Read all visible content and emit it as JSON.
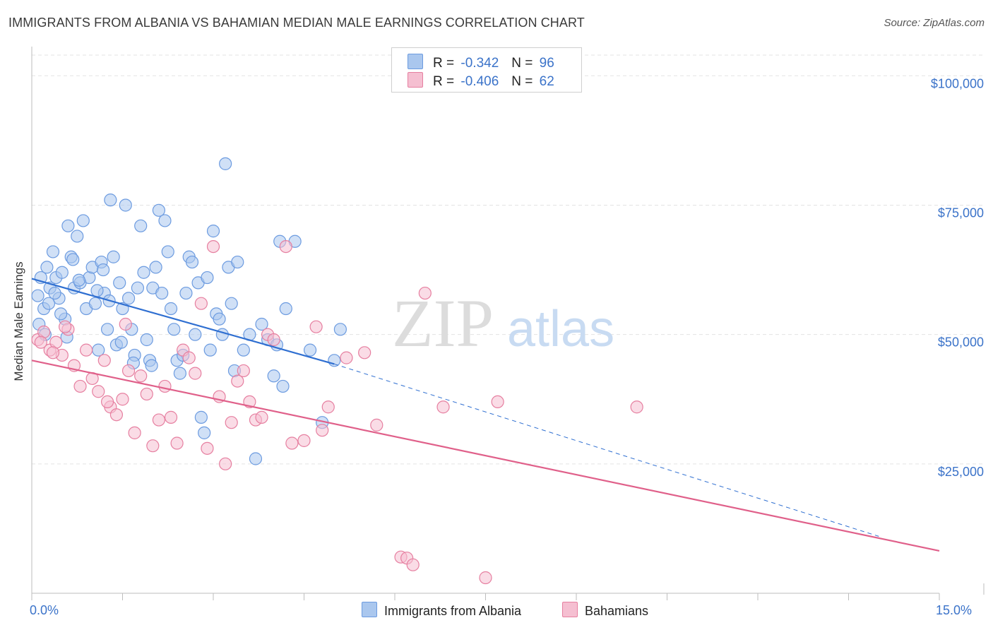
{
  "title": "IMMIGRANTS FROM ALBANIA VS BAHAMIAN MEDIAN MALE EARNINGS CORRELATION CHART",
  "source": "Source: ZipAtlas.com",
  "watermark": {
    "zip": "ZIP",
    "atlas": "atlas"
  },
  "legend": {
    "r_label": "R =",
    "n_label": "N =",
    "rows": [
      {
        "r": "-0.342",
        "n": "96",
        "color": "#aac7ee"
      },
      {
        "r": "-0.406",
        "n": "62",
        "color": "#f5bfd1"
      }
    ]
  },
  "bottom_legend": {
    "albania": "Immigrants from Albania",
    "bahamians": "Bahamians"
  },
  "chart_data": {
    "type": "scatter",
    "title": "IMMIGRANTS FROM ALBANIA VS BAHAMIAN MEDIAN MALE EARNINGS CORRELATION CHART",
    "xlabel": "",
    "ylabel": "Median Male Earnings",
    "xlim": [
      0,
      15
    ],
    "ylim": [
      0,
      104000
    ],
    "x_tick_labels": {
      "left": "0.0%",
      "right": "15.0%"
    },
    "y_ticks": [
      {
        "value": 25000,
        "label": "$25,000"
      },
      {
        "value": 50000,
        "label": "$50,000"
      },
      {
        "value": 75000,
        "label": "$75,000"
      },
      {
        "value": 100000,
        "label": "$100,000"
      }
    ],
    "grid": true,
    "series": [
      {
        "name": "Immigrants from Albania",
        "color": "#6c9be0",
        "fill": "#aac7ee",
        "trend": {
          "x0": 0,
          "y0": 60800,
          "x1": 5.0,
          "y1": 44300,
          "dash_to_x": 14.0,
          "dash_to_y": 11000
        },
        "points": [
          [
            0.1,
            57500
          ],
          [
            0.15,
            61000
          ],
          [
            0.2,
            55000
          ],
          [
            0.25,
            63000
          ],
          [
            0.3,
            59000
          ],
          [
            0.35,
            66000
          ],
          [
            0.4,
            61000
          ],
          [
            0.45,
            57000
          ],
          [
            0.5,
            62000
          ],
          [
            0.55,
            53000
          ],
          [
            0.6,
            71000
          ],
          [
            0.65,
            65000
          ],
          [
            0.7,
            59000
          ],
          [
            0.75,
            69000
          ],
          [
            0.8,
            60000
          ],
          [
            0.85,
            72000
          ],
          [
            0.9,
            55000
          ],
          [
            0.95,
            61000
          ],
          [
            1.0,
            63000
          ],
          [
            1.05,
            56000
          ],
          [
            1.1,
            47000
          ],
          [
            1.15,
            64000
          ],
          [
            1.2,
            58000
          ],
          [
            1.25,
            51000
          ],
          [
            1.3,
            76000
          ],
          [
            1.35,
            65000
          ],
          [
            1.4,
            48000
          ],
          [
            1.45,
            60000
          ],
          [
            1.5,
            55000
          ],
          [
            1.55,
            75000
          ],
          [
            1.6,
            57000
          ],
          [
            1.65,
            51000
          ],
          [
            1.7,
            46000
          ],
          [
            1.75,
            59000
          ],
          [
            1.8,
            71000
          ],
          [
            1.85,
            62000
          ],
          [
            1.9,
            49000
          ],
          [
            1.95,
            45000
          ],
          [
            2.0,
            59000
          ],
          [
            2.05,
            63000
          ],
          [
            2.1,
            74000
          ],
          [
            2.15,
            58000
          ],
          [
            2.2,
            72000
          ],
          [
            2.25,
            66000
          ],
          [
            2.3,
            55000
          ],
          [
            2.35,
            51000
          ],
          [
            2.4,
            45000
          ],
          [
            2.45,
            42500
          ],
          [
            2.5,
            46000
          ],
          [
            2.55,
            58000
          ],
          [
            2.6,
            65000
          ],
          [
            2.65,
            64000
          ],
          [
            2.7,
            50000
          ],
          [
            2.75,
            60000
          ],
          [
            2.8,
            34000
          ],
          [
            2.85,
            31000
          ],
          [
            2.9,
            61000
          ],
          [
            2.95,
            47000
          ],
          [
            3.0,
            70000
          ],
          [
            3.05,
            54000
          ],
          [
            3.1,
            53000
          ],
          [
            3.15,
            50000
          ],
          [
            3.2,
            83000
          ],
          [
            3.25,
            63000
          ],
          [
            3.3,
            56000
          ],
          [
            3.35,
            43000
          ],
          [
            3.4,
            64000
          ],
          [
            3.5,
            47000
          ],
          [
            3.6,
            50000
          ],
          [
            3.7,
            26000
          ],
          [
            3.8,
            52000
          ],
          [
            3.9,
            49000
          ],
          [
            4.0,
            42000
          ],
          [
            4.05,
            48000
          ],
          [
            4.1,
            68000
          ],
          [
            4.15,
            40000
          ],
          [
            4.2,
            55000
          ],
          [
            4.35,
            68000
          ],
          [
            4.6,
            47000
          ],
          [
            4.8,
            33000
          ],
          [
            5.0,
            45000
          ],
          [
            5.1,
            51000
          ],
          [
            0.12,
            52000
          ],
          [
            0.22,
            50000
          ],
          [
            0.28,
            56000
          ],
          [
            0.38,
            58000
          ],
          [
            0.48,
            54000
          ],
          [
            0.58,
            49500
          ],
          [
            0.68,
            64500
          ],
          [
            0.78,
            60500
          ],
          [
            1.08,
            58500
          ],
          [
            1.18,
            62500
          ],
          [
            1.28,
            56500
          ],
          [
            1.48,
            48500
          ],
          [
            1.68,
            44500
          ],
          [
            1.98,
            44000
          ]
        ]
      },
      {
        "name": "Bahamians",
        "color": "#e67fa0",
        "fill": "#f5bfd1",
        "trend": {
          "x0": 0,
          "y0": 45000,
          "x1": 15.0,
          "y1": 8200
        },
        "points": [
          [
            0.1,
            49000
          ],
          [
            0.2,
            50500
          ],
          [
            0.3,
            47000
          ],
          [
            0.4,
            48500
          ],
          [
            0.5,
            46000
          ],
          [
            0.6,
            51000
          ],
          [
            0.7,
            44000
          ],
          [
            0.8,
            40000
          ],
          [
            0.9,
            47000
          ],
          [
            1.0,
            41500
          ],
          [
            1.1,
            39000
          ],
          [
            1.2,
            45000
          ],
          [
            1.3,
            36000
          ],
          [
            1.4,
            34500
          ],
          [
            1.5,
            37500
          ],
          [
            1.6,
            43000
          ],
          [
            1.7,
            31000
          ],
          [
            1.8,
            42000
          ],
          [
            1.9,
            38500
          ],
          [
            2.0,
            28500
          ],
          [
            2.1,
            33500
          ],
          [
            2.2,
            40000
          ],
          [
            2.3,
            34000
          ],
          [
            2.4,
            29000
          ],
          [
            2.5,
            47000
          ],
          [
            2.6,
            45500
          ],
          [
            2.7,
            42500
          ],
          [
            2.8,
            56000
          ],
          [
            2.9,
            28000
          ],
          [
            3.0,
            67000
          ],
          [
            3.1,
            38000
          ],
          [
            3.2,
            25000
          ],
          [
            3.3,
            33000
          ],
          [
            3.4,
            41000
          ],
          [
            3.5,
            43000
          ],
          [
            3.6,
            37000
          ],
          [
            3.7,
            33500
          ],
          [
            3.8,
            34000
          ],
          [
            3.9,
            50000
          ],
          [
            4.0,
            49000
          ],
          [
            4.2,
            67000
          ],
          [
            4.3,
            29000
          ],
          [
            4.5,
            29500
          ],
          [
            4.7,
            51500
          ],
          [
            4.8,
            31500
          ],
          [
            4.9,
            36000
          ],
          [
            5.2,
            45500
          ],
          [
            5.5,
            46500
          ],
          [
            5.7,
            32500
          ],
          [
            6.1,
            7000
          ],
          [
            6.2,
            6800
          ],
          [
            6.3,
            5500
          ],
          [
            6.5,
            58000
          ],
          [
            6.8,
            36000
          ],
          [
            7.5,
            3000
          ],
          [
            7.7,
            37000
          ],
          [
            10.0,
            36000
          ],
          [
            0.15,
            48500
          ],
          [
            0.35,
            46500
          ],
          [
            0.55,
            51500
          ],
          [
            1.25,
            37000
          ],
          [
            1.55,
            52000
          ]
        ]
      }
    ]
  }
}
